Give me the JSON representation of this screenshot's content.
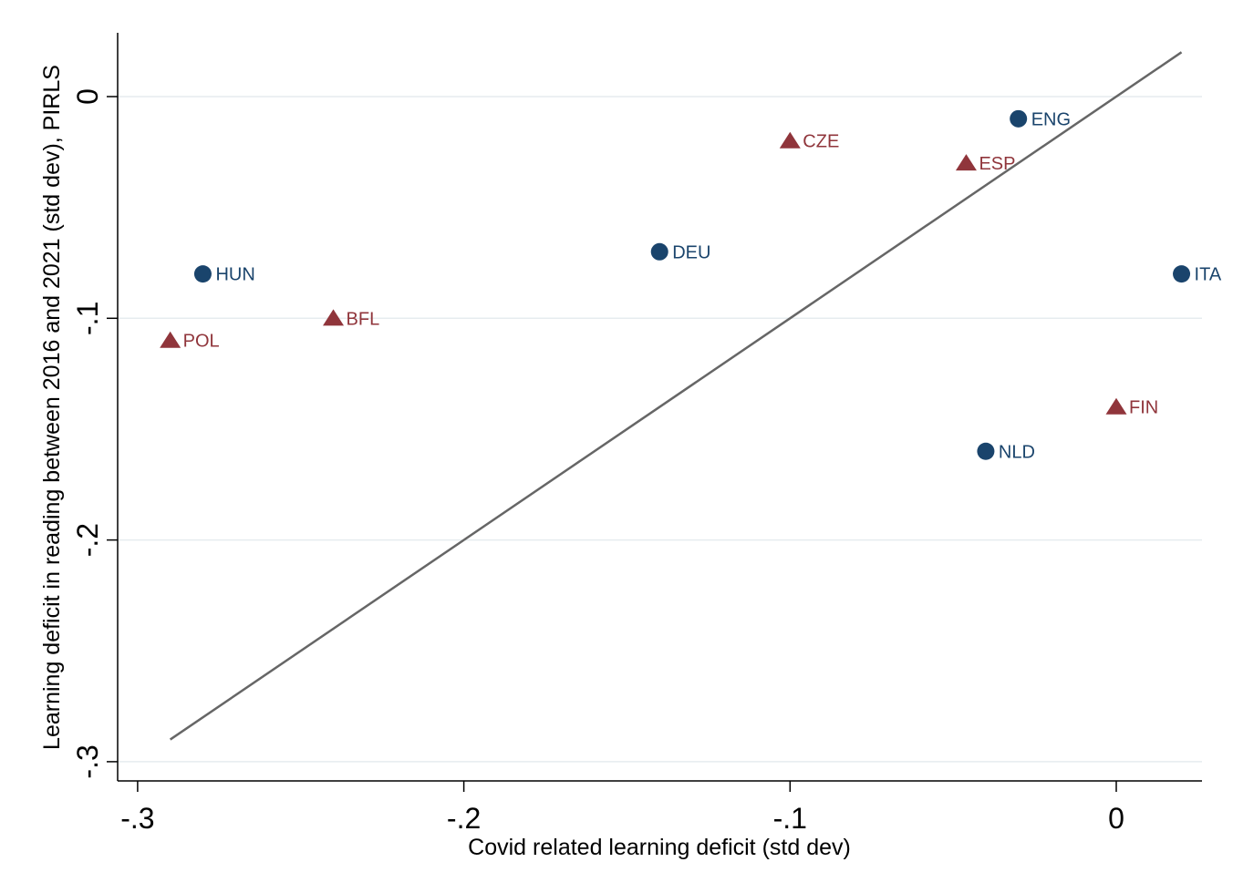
{
  "chart_data": {
    "type": "scatter",
    "title": "",
    "xlabel": "Covid related learning deficit (std dev)",
    "ylabel": "Learning deficit in reading between 2016 and 2021 (std dev), PIRLS",
    "xlim": [
      -0.3,
      0.02
    ],
    "ylim": [
      -0.3,
      0.02
    ],
    "x_ticks": [
      {
        "value": -0.3,
        "label": "-.3"
      },
      {
        "value": -0.2,
        "label": "-.2"
      },
      {
        "value": -0.1,
        "label": "-.1"
      },
      {
        "value": 0,
        "label": "0"
      }
    ],
    "y_ticks": [
      {
        "value": -0.3,
        "label": "-.3"
      },
      {
        "value": -0.2,
        "label": "-.2"
      },
      {
        "value": -0.1,
        "label": "-.1"
      },
      {
        "value": 0,
        "label": "0"
      }
    ],
    "grid": "horizontal",
    "reference_line": {
      "x": [
        -0.29,
        0.02
      ],
      "y": [
        -0.29,
        0.02
      ],
      "color": "#666666"
    },
    "series": [
      {
        "marker": "circle",
        "color": "#1a446c",
        "points": [
          {
            "label": "HUN",
            "x": -0.28,
            "y": -0.08
          },
          {
            "label": "DEU",
            "x": -0.14,
            "y": -0.07
          },
          {
            "label": "ENG",
            "x": -0.03,
            "y": -0.01
          },
          {
            "label": "ITA",
            "x": 0.02,
            "y": -0.08
          },
          {
            "label": "NLD",
            "x": -0.04,
            "y": -0.16
          }
        ]
      },
      {
        "marker": "triangle",
        "color": "#90353b",
        "points": [
          {
            "label": "POL",
            "x": -0.29,
            "y": -0.11
          },
          {
            "label": "BFL",
            "x": -0.24,
            "y": -0.1
          },
          {
            "label": "CZE",
            "x": -0.1,
            "y": -0.02
          },
          {
            "label": "ESP",
            "x": -0.046,
            "y": -0.03
          },
          {
            "label": "FIN",
            "x": 0.0,
            "y": -0.14
          }
        ]
      }
    ]
  }
}
